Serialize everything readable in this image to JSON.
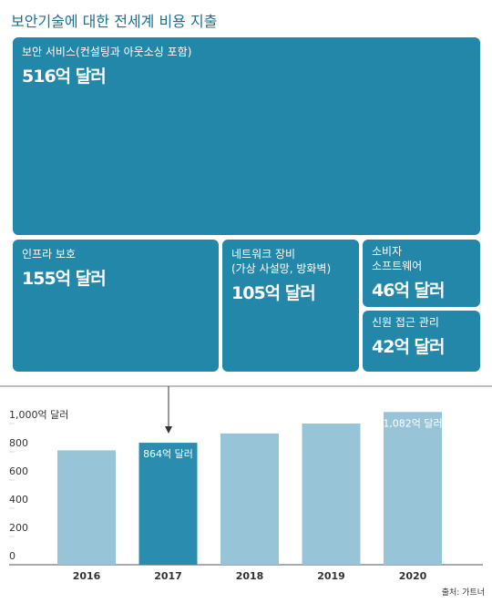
{
  "title": "보안기술에 대한 전세계 비용 지출",
  "chart_data": [
    {
      "type": "treemap",
      "categories": [
        "보안 서비스(컨설팅과 아웃소싱 포함)",
        "인프라 보호",
        "네트워크 장비\n(가상 사설망, 방화벽)",
        "소비자\n소프트웨어",
        "신원 접근 관리"
      ],
      "values": [
        516,
        155,
        105,
        46,
        42
      ],
      "value_labels": [
        "516억 달러",
        "155억 달러",
        "105억 달러",
        "46억 달러",
        "42억 달러"
      ],
      "color": "#2387a9"
    },
    {
      "type": "bar",
      "categories": [
        "2016",
        "2017",
        "2018",
        "2019",
        "2020"
      ],
      "values": [
        810,
        864,
        930,
        1000,
        1082
      ],
      "value_labels": [
        null,
        "864억 달러",
        null,
        null,
        "1,082억 달러"
      ],
      "colors": [
        "#98c4d8",
        "#2a8db0",
        "#98c4d8",
        "#98c4d8",
        "#98c4d8"
      ],
      "ylim": [
        0,
        1100
      ],
      "yticks": [
        0,
        200,
        400,
        600,
        800,
        {
          "value": 1000,
          "label": "1,000억 달러"
        }
      ]
    }
  ],
  "source": "출처: 가트너"
}
